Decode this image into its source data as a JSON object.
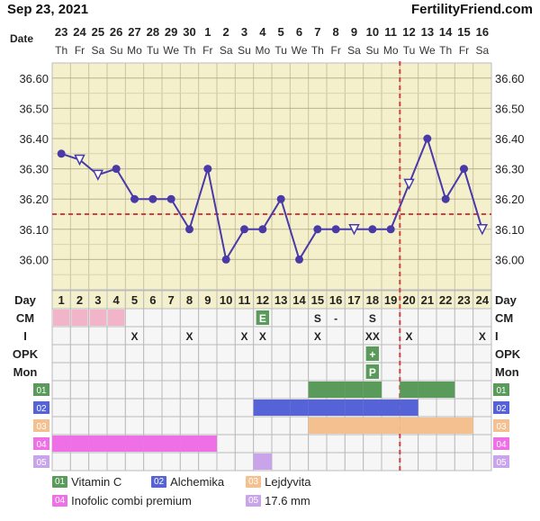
{
  "header": {
    "date": "Sep 23, 2021",
    "site": "FertilityFriend.com"
  },
  "chart_data": {
    "type": "line",
    "x_label": "Date",
    "dates": [
      "23",
      "24",
      "25",
      "26",
      "27",
      "28",
      "29",
      "30",
      "1",
      "2",
      "3",
      "4",
      "5",
      "6",
      "7",
      "8",
      "9",
      "10",
      "11",
      "12",
      "13",
      "14",
      "15",
      "16"
    ],
    "weekdays": [
      "Th",
      "Fr",
      "Sa",
      "Su",
      "Mo",
      "Tu",
      "We",
      "Th",
      "Fr",
      "Sa",
      "Su",
      "Mo",
      "Tu",
      "We",
      "Th",
      "Fr",
      "Sa",
      "Su",
      "Mo",
      "Tu",
      "We",
      "Th",
      "Fr",
      "Sa"
    ],
    "cycle_days": [
      "1",
      "2",
      "3",
      "4",
      "5",
      "6",
      "7",
      "8",
      "9",
      "10",
      "11",
      "12",
      "13",
      "14",
      "15",
      "16",
      "17",
      "18",
      "19",
      "20",
      "21",
      "22",
      "23",
      "24"
    ],
    "temperatures": [
      36.35,
      36.33,
      36.28,
      36.3,
      36.2,
      36.2,
      36.2,
      36.1,
      36.3,
      36.0,
      36.1,
      36.1,
      36.2,
      36.0,
      36.1,
      36.1,
      36.1,
      36.1,
      36.1,
      36.25,
      36.4,
      36.2,
      36.3,
      36.1
    ],
    "open_markers": [
      1,
      2,
      16,
      19,
      23
    ],
    "y_ticks": [
      "36.60",
      "36.50",
      "36.40",
      "36.30",
      "36.20",
      "36.10",
      "36.00"
    ],
    "ylim": [
      35.9,
      36.65
    ],
    "coverline": 36.15,
    "ovulation_day": 19,
    "grid_color": "#f5f0cc",
    "line_color": "#4a3aa8",
    "coverline_color": "#d04040"
  },
  "rows": {
    "day_label": "Day",
    "cm_label": "CM",
    "i_label": "I",
    "opk_label": "OPK",
    "mon_label": "Mon",
    "cm": {
      "12": "E",
      "15": "S",
      "16": "-",
      "18": "S"
    },
    "cm_shaded": [
      1,
      2,
      3,
      4
    ],
    "cm_green": [
      12
    ],
    "intercourse": {
      "5": "X",
      "8": "X",
      "11": "X",
      "12": "X",
      "15": "X",
      "18": "XX",
      "20": "X",
      "24": "X"
    },
    "opk": {
      "18": "+"
    },
    "mon": {
      "18": "P"
    },
    "supplements": [
      {
        "badge": "01",
        "color": "#5a9a5a",
        "days": [
          15,
          16,
          17,
          18,
          20,
          21,
          22
        ]
      },
      {
        "badge": "02",
        "color": "#5563d6",
        "days": [
          12,
          13,
          14,
          15,
          16,
          17,
          18,
          19,
          20
        ]
      },
      {
        "badge": "03",
        "color": "#f4c090",
        "days": [
          15,
          16,
          17,
          18,
          19,
          20,
          21,
          22,
          23
        ]
      },
      {
        "badge": "04",
        "color": "#ee6fe6",
        "days": [
          1,
          2,
          3,
          4,
          5,
          6,
          7,
          8,
          9
        ]
      },
      {
        "badge": "05",
        "color": "#c9a4ea",
        "days": [
          12
        ]
      }
    ]
  },
  "legend": [
    {
      "badge": "01",
      "label": "Vitamin C",
      "color": "#5a9a5a"
    },
    {
      "badge": "02",
      "label": "Alchemika",
      "color": "#5563d6"
    },
    {
      "badge": "03",
      "label": "Lejdyvita",
      "color": "#f4c090"
    },
    {
      "badge": "04",
      "label": "Inofolic combi premium",
      "color": "#ee6fe6"
    },
    {
      "badge": "05",
      "label": "17.6 mm",
      "color": "#c9a4ea"
    }
  ]
}
